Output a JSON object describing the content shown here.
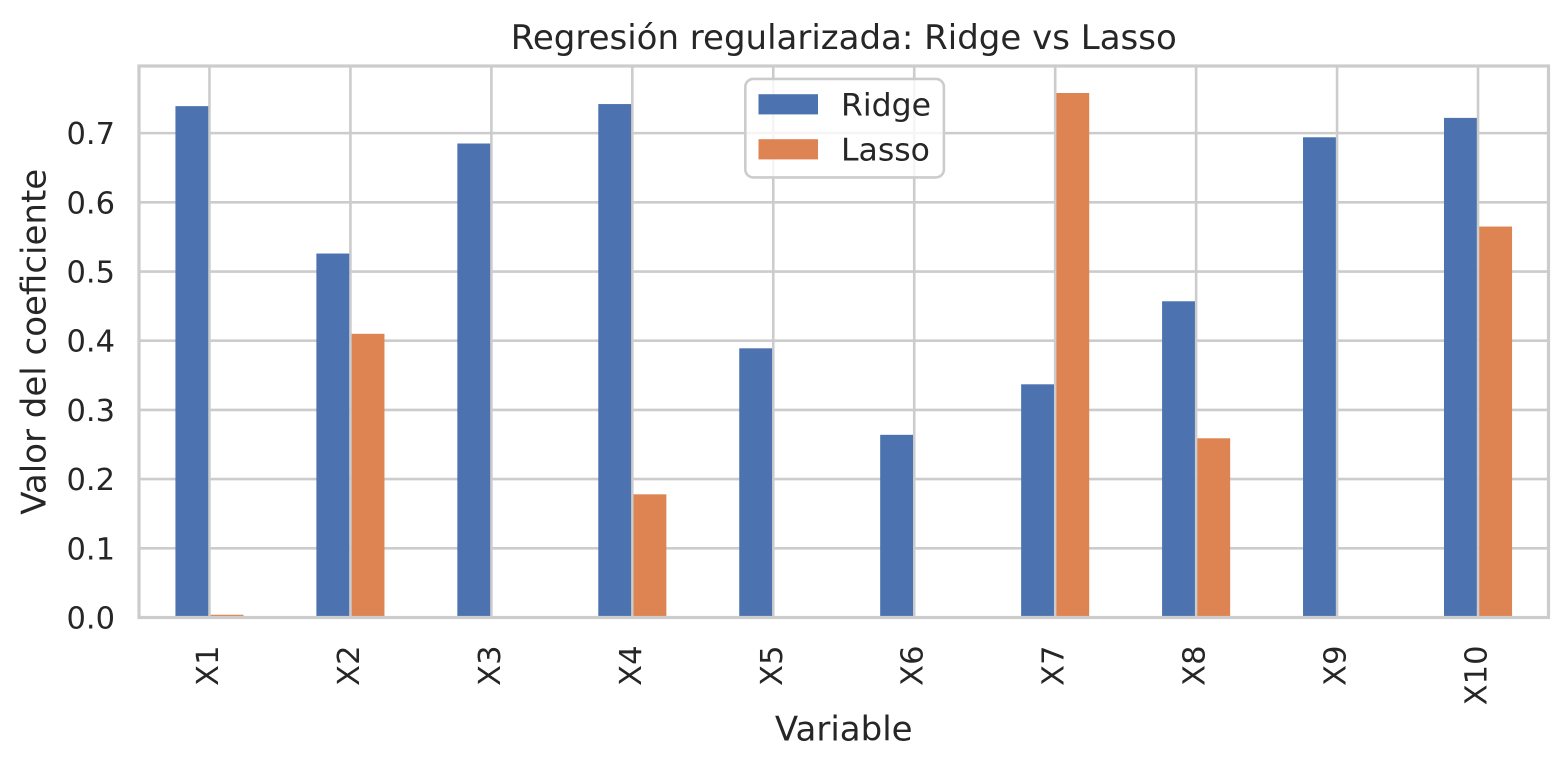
{
  "chart_data": {
    "type": "bar",
    "title": "Regresión regularizada: Ridge vs Lasso",
    "xlabel": "Variable",
    "ylabel": "Valor del coeficiente",
    "categories": [
      "X1",
      "X2",
      "X3",
      "X4",
      "X5",
      "X6",
      "X7",
      "X8",
      "X9",
      "X10"
    ],
    "series": [
      {
        "name": "Ridge",
        "color": "#4c72b0",
        "values": [
          0.739,
          0.526,
          0.685,
          0.742,
          0.389,
          0.264,
          0.337,
          0.457,
          0.694,
          0.722
        ]
      },
      {
        "name": "Lasso",
        "color": "#dd8452",
        "values": [
          0.004,
          0.41,
          0.0,
          0.178,
          0.0,
          0.0,
          0.758,
          0.259,
          0.0,
          0.565
        ]
      }
    ],
    "ylim": [
      0,
      0.797
    ],
    "yticks": [
      0.0,
      0.1,
      0.2,
      0.3,
      0.4,
      0.5,
      0.6,
      0.7
    ],
    "ytick_labels": [
      "0.0",
      "0.1",
      "0.2",
      "0.3",
      "0.4",
      "0.5",
      "0.6",
      "0.7"
    ],
    "grid": "on",
    "legend_position": "upper center",
    "legend_labels": [
      "Ridge",
      "Lasso"
    ],
    "colors": {
      "background": "#ffffff",
      "grid": "#cccccc",
      "spine": "#cccccc",
      "text": "#262626",
      "legend_edge": "#cccccc"
    }
  }
}
